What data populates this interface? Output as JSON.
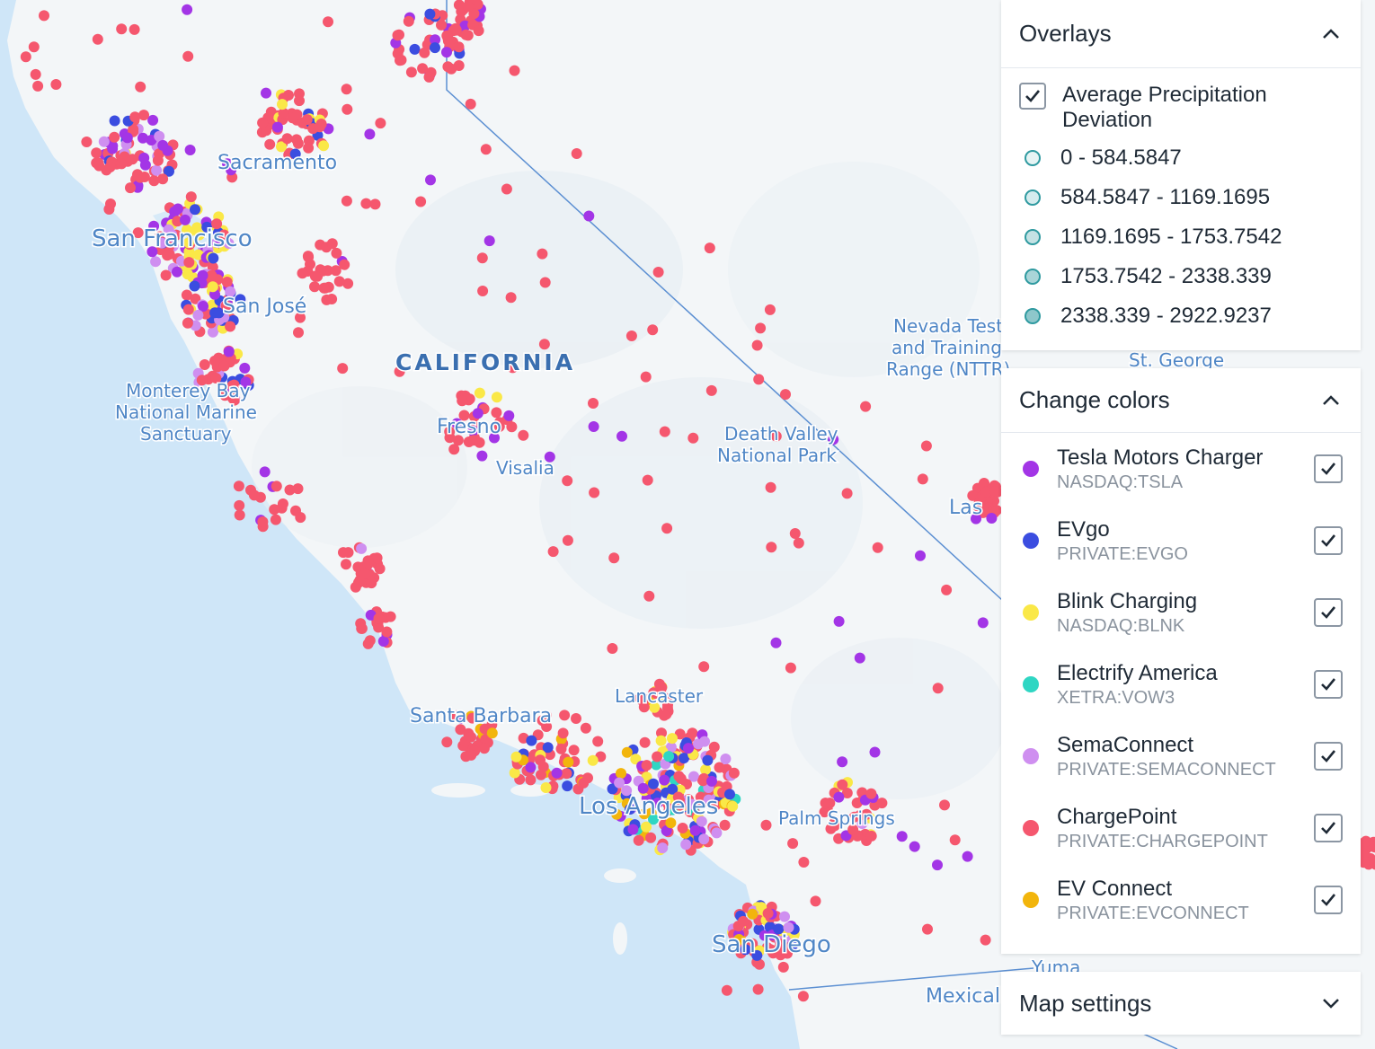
{
  "map": {
    "state_label": "CALIFORNIA",
    "places": [
      {
        "id": "sacramento",
        "name": "Sacramento"
      },
      {
        "id": "san-francisco",
        "name": "San Francisco"
      },
      {
        "id": "san-jose",
        "name": "San José"
      },
      {
        "id": "monterey-1",
        "name": "Monterey Bay"
      },
      {
        "id": "monterey-2",
        "name": "National Marine"
      },
      {
        "id": "monterey-3",
        "name": "Sanctuary"
      },
      {
        "id": "fresno",
        "name": "Fresno"
      },
      {
        "id": "visalia",
        "name": "Visalia"
      },
      {
        "id": "nevada-test-1",
        "name": "Nevada Test"
      },
      {
        "id": "nevada-test-2",
        "name": "and Training"
      },
      {
        "id": "nevada-test-3",
        "name": "Range (NTTR)"
      },
      {
        "id": "st-george",
        "name": "St. George"
      },
      {
        "id": "death-valley-1",
        "name": "Death Valley"
      },
      {
        "id": "death-valley-2",
        "name": "National Park"
      },
      {
        "id": "las-vegas",
        "name": "Las"
      },
      {
        "id": "lancaster",
        "name": "Lancaster"
      },
      {
        "id": "santa-barbara",
        "name": "Santa Barbara"
      },
      {
        "id": "los-angeles",
        "name": "Los Angeles"
      },
      {
        "id": "palm-springs",
        "name": "Palm Springs"
      },
      {
        "id": "san-diego",
        "name": "San Diego"
      },
      {
        "id": "yuma",
        "name": "Yuma"
      },
      {
        "id": "mexicali",
        "name": "Mexicali"
      }
    ]
  },
  "overlays": {
    "title": "Overlays",
    "layer_label": "Average Precipitation Deviation",
    "layer_checked": true,
    "ranges": [
      {
        "label": "0 - 584.5847",
        "color": "#e6f4f4"
      },
      {
        "label": "584.5847 - 1169.1695",
        "color": "#d5ecee"
      },
      {
        "label": "1169.1695 - 1753.7542",
        "color": "#c4e2e4"
      },
      {
        "label": "1753.7542 - 2338.339",
        "color": "#a9d5d8"
      },
      {
        "label": "2338.339 - 2922.9237",
        "color": "#8ec7cb"
      }
    ]
  },
  "change_colors": {
    "title": "Change colors",
    "companies": [
      {
        "name": "Tesla Motors Charger",
        "ticker": "NASDAQ:TSLA",
        "color": "#a335e6",
        "checked": true
      },
      {
        "name": "EVgo",
        "ticker": "PRIVATE:EVGO",
        "color": "#3b4de0",
        "checked": true
      },
      {
        "name": "Blink Charging",
        "ticker": "NASDAQ:BLNK",
        "color": "#fae847",
        "checked": true
      },
      {
        "name": "Electrify America",
        "ticker": "XETRA:VOW3",
        "color": "#2fd6c3",
        "checked": true
      },
      {
        "name": "SemaConnect",
        "ticker": "PRIVATE:SEMACONNECT",
        "color": "#cf8ff0",
        "checked": true
      },
      {
        "name": "ChargePoint",
        "ticker": "PRIVATE:CHARGEPOINT",
        "color": "#f5576e",
        "checked": true
      },
      {
        "name": "EV Connect",
        "ticker": "PRIVATE:EVCONNECT",
        "color": "#f2b50c",
        "checked": true
      }
    ]
  },
  "map_settings": {
    "title": "Map settings"
  }
}
